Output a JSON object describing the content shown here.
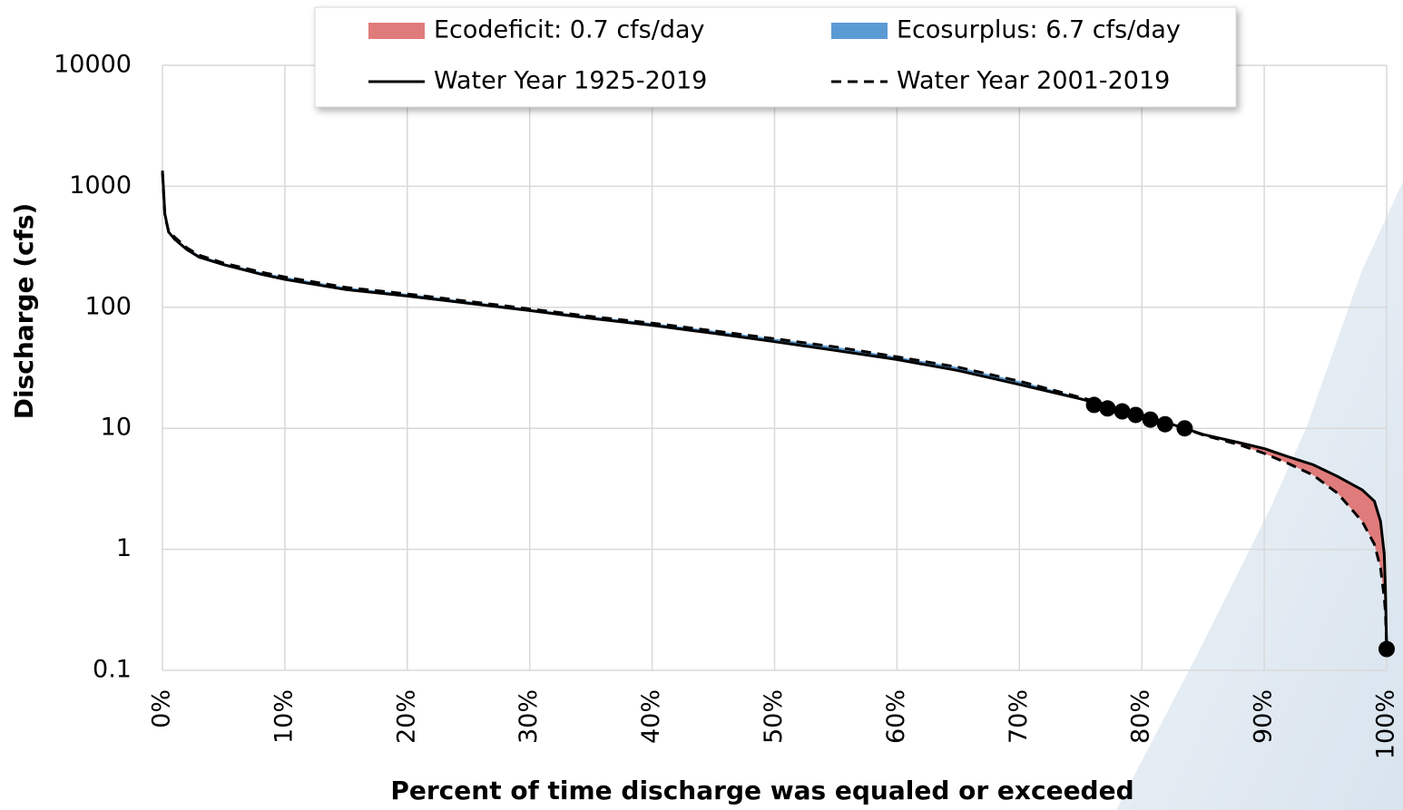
{
  "chart_data": {
    "type": "line",
    "x_label": "Percent of time discharge was equaled or exceeded",
    "y_label": "Discharge (cfs)",
    "x": [
      0,
      0.2,
      0.5,
      1,
      2,
      3,
      5,
      8,
      10,
      15,
      20,
      25,
      30,
      35,
      40,
      45,
      50,
      55,
      60,
      65,
      70,
      75,
      80,
      83.5,
      85,
      88,
      90,
      92,
      94,
      96,
      98,
      99,
      99.5,
      99.8,
      99.9,
      100
    ],
    "series": [
      {
        "name": "Water Year 1925-2019",
        "color": "#000000",
        "dashed": false,
        "values": [
          1350,
          590,
          420,
          365,
          300,
          260,
          225,
          188,
          170,
          140,
          124,
          108,
          94,
          81,
          71,
          61,
          52,
          44,
          37,
          30,
          23,
          17.5,
          12.9,
          10,
          8.9,
          7.6,
          6.8,
          5.8,
          5.0,
          4.0,
          3.1,
          2.5,
          1.7,
          0.92,
          0.46,
          0.15
        ]
      },
      {
        "name": "Water Year 2001-2019",
        "color": "#000000",
        "dashed": true,
        "values": [
          1300,
          560,
          430,
          380,
          310,
          270,
          232,
          196,
          178,
          146,
          129,
          112,
          97,
          84,
          74,
          64,
          55,
          47,
          39,
          32,
          24.5,
          18,
          13,
          10,
          8.8,
          7.3,
          6.2,
          5.1,
          4.1,
          2.9,
          1.7,
          1.1,
          0.7,
          0.4,
          0.3,
          0.15
        ]
      }
    ],
    "fills": [
      {
        "name": "Ecodeficit: 0.7 cfs/day",
        "color": "#e07b7b",
        "kind": "deficit"
      },
      {
        "name": "Ecosurplus: 6.7 cfs/day",
        "color": "#5b9bd5",
        "kind": "surplus"
      }
    ],
    "markers": {
      "color": "#000000",
      "x": [
        76.1,
        77.2,
        78.4,
        79.5,
        80.7,
        81.9,
        83.5,
        100
      ],
      "values": [
        15.6,
        14.6,
        13.8,
        12.9,
        11.8,
        10.8,
        10,
        0.15
      ]
    },
    "xlim": [
      0,
      100
    ],
    "xticks": [
      {
        "value": 0,
        "label": "0%"
      },
      {
        "value": 10,
        "label": "10%"
      },
      {
        "value": 20,
        "label": "20%"
      },
      {
        "value": 30,
        "label": "30%"
      },
      {
        "value": 40,
        "label": "40%"
      },
      {
        "value": 50,
        "label": "50%"
      },
      {
        "value": 60,
        "label": "60%"
      },
      {
        "value": 70,
        "label": "70%"
      },
      {
        "value": 80,
        "label": "80%"
      },
      {
        "value": 90,
        "label": "90%"
      },
      {
        "value": 100,
        "label": "100%"
      }
    ],
    "ylim": [
      0.1,
      10000
    ],
    "yticks": [
      0.1,
      1,
      10,
      100,
      1000,
      10000
    ],
    "ylog": true,
    "grid": true,
    "legend": "top"
  }
}
